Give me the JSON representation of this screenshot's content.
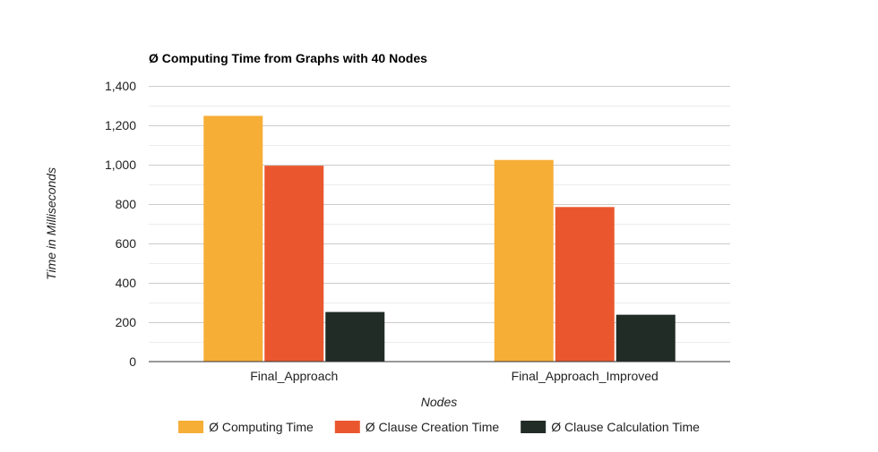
{
  "chart_data": {
    "type": "bar",
    "title": "Ø Computing Time from Graphs with 40 Nodes",
    "xlabel": "Nodes",
    "ylabel": "Time in Milliseconds",
    "categories": [
      "Final_Approach",
      "Final_Approach_Improved"
    ],
    "series": [
      {
        "name": "Ø Computing Time",
        "color": "#f6ae37",
        "values": [
          1248,
          1024
        ]
      },
      {
        "name": "Ø Clause Creation Time",
        "color": "#ea572f",
        "values": [
          995,
          785
        ]
      },
      {
        "name": "Ø Clause Calculation Time",
        "color": "#212c26",
        "values": [
          252,
          238
        ]
      }
    ],
    "ylim": [
      0,
      1400
    ],
    "yticks": [
      0,
      200,
      400,
      600,
      800,
      1000,
      1200,
      1400
    ],
    "ytick_labels": [
      "0",
      "200",
      "400",
      "600",
      "800",
      "1,000",
      "1,200",
      "1,400"
    ],
    "grid": true,
    "minor_grid": true,
    "legend_position": "bottom"
  }
}
